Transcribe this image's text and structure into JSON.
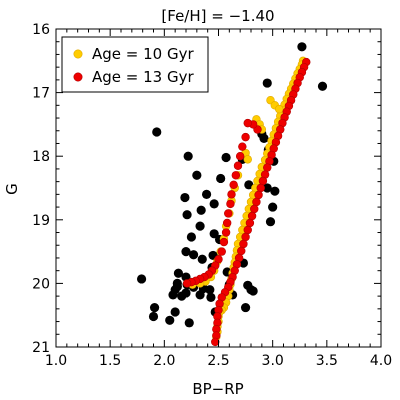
{
  "chart_data": {
    "type": "scatter",
    "title": "[Fe/H] = −1.40",
    "xlabel": "BP−RP",
    "ylabel": "G",
    "xlim": [
      1.0,
      4.0
    ],
    "ylim": [
      21,
      16
    ],
    "y_inverted": true,
    "grid": false,
    "legend_position": "top-left",
    "xticks": [
      {
        "value": 1.0,
        "label": "1.0"
      },
      {
        "value": 1.5,
        "label": "1.5"
      },
      {
        "value": 2.0,
        "label": "2.0"
      },
      {
        "value": 2.5,
        "label": "2.5"
      },
      {
        "value": 3.0,
        "label": "3.0"
      },
      {
        "value": 3.5,
        "label": "3.5"
      },
      {
        "value": 4.0,
        "label": "4.0"
      }
    ],
    "yticks": [
      {
        "value": 16,
        "label": "16"
      },
      {
        "value": 17,
        "label": "17"
      },
      {
        "value": 18,
        "label": "18"
      },
      {
        "value": 19,
        "label": "19"
      },
      {
        "value": 20,
        "label": "20"
      },
      {
        "value": 21,
        "label": "21"
      }
    ],
    "stars": {
      "color": "#000000",
      "points": [
        [
          3.27,
          16.28
        ],
        [
          2.34,
          16.75
        ],
        [
          3.46,
          16.9
        ],
        [
          2.95,
          16.85
        ],
        [
          1.93,
          17.62
        ],
        [
          2.9,
          17.65
        ],
        [
          2.92,
          17.72
        ],
        [
          2.96,
          17.9
        ],
        [
          2.22,
          18.0
        ],
        [
          2.57,
          18.02
        ],
        [
          2.72,
          18.05
        ],
        [
          3.01,
          18.08
        ],
        [
          2.3,
          18.3
        ],
        [
          2.52,
          18.35
        ],
        [
          2.78,
          18.45
        ],
        [
          2.95,
          18.5
        ],
        [
          3.02,
          18.55
        ],
        [
          2.39,
          18.6
        ],
        [
          2.19,
          18.65
        ],
        [
          2.46,
          18.75
        ],
        [
          3.0,
          18.8
        ],
        [
          2.34,
          18.85
        ],
        [
          2.21,
          18.92
        ],
        [
          2.98,
          19.03
        ],
        [
          2.33,
          19.1
        ],
        [
          2.46,
          19.22
        ],
        [
          2.25,
          19.27
        ],
        [
          2.51,
          19.31
        ],
        [
          2.2,
          19.5
        ],
        [
          2.27,
          19.55
        ],
        [
          2.45,
          19.56
        ],
        [
          2.35,
          19.62
        ],
        [
          2.44,
          19.75
        ],
        [
          2.73,
          19.68
        ],
        [
          2.13,
          19.84
        ],
        [
          2.58,
          19.82
        ],
        [
          1.79,
          19.93
        ],
        [
          2.2,
          19.9
        ],
        [
          2.37,
          19.94
        ],
        [
          2.12,
          20.0
        ],
        [
          2.21,
          20.02
        ],
        [
          2.6,
          20.02
        ],
        [
          2.77,
          20.03
        ],
        [
          2.12,
          20.05
        ],
        [
          2.27,
          20.06
        ],
        [
          2.36,
          20.08
        ],
        [
          2.1,
          20.1
        ],
        [
          2.42,
          20.1
        ],
        [
          2.2,
          20.15
        ],
        [
          2.33,
          20.18
        ],
        [
          2.63,
          20.18
        ],
        [
          2.8,
          20.1
        ],
        [
          2.08,
          20.18
        ],
        [
          2.16,
          20.2
        ],
        [
          2.43,
          20.22
        ],
        [
          1.91,
          20.38
        ],
        [
          2.1,
          20.45
        ],
        [
          2.47,
          20.45
        ],
        [
          2.75,
          20.38
        ],
        [
          2.82,
          20.12
        ],
        [
          1.9,
          20.52
        ],
        [
          2.05,
          20.58
        ],
        [
          2.23,
          20.62
        ]
      ]
    },
    "series": [
      {
        "name": "Age = 10 Gyr",
        "color": "#ffcc00",
        "points": [
          [
            3.28,
            16.5
          ],
          [
            3.27,
            16.56
          ],
          [
            3.25,
            16.63
          ],
          [
            3.23,
            16.7
          ],
          [
            3.21,
            16.78
          ],
          [
            3.19,
            16.86
          ],
          [
            3.17,
            16.94
          ],
          [
            3.15,
            17.02
          ],
          [
            3.13,
            17.1
          ],
          [
            3.11,
            17.19
          ],
          [
            3.09,
            17.28
          ],
          [
            3.07,
            17.37
          ],
          [
            3.05,
            17.46
          ],
          [
            3.03,
            17.56
          ],
          [
            3.01,
            17.66
          ],
          [
            2.99,
            17.76
          ],
          [
            2.97,
            17.86
          ],
          [
            2.95,
            17.96
          ],
          [
            2.93,
            18.06
          ],
          [
            2.9,
            18.17
          ],
          [
            2.88,
            18.28
          ],
          [
            2.86,
            18.39
          ],
          [
            2.84,
            18.5
          ],
          [
            2.82,
            18.61
          ],
          [
            2.8,
            18.72
          ],
          [
            2.78,
            18.83
          ],
          [
            2.76,
            18.94
          ],
          [
            2.74,
            19.05
          ],
          [
            2.72,
            19.16
          ],
          [
            2.7,
            19.27
          ],
          [
            2.68,
            19.38
          ],
          [
            2.67,
            19.48
          ],
          [
            2.66,
            19.58
          ],
          [
            2.65,
            19.67
          ],
          [
            2.64,
            19.75
          ],
          [
            2.63,
            19.84
          ],
          [
            2.62,
            19.93
          ],
          [
            2.61,
            20.02
          ],
          [
            2.6,
            20.1
          ],
          [
            2.59,
            20.2
          ],
          [
            2.57,
            20.3
          ],
          [
            2.55,
            20.38
          ],
          [
            2.53,
            20.42
          ],
          [
            2.51,
            20.45
          ],
          [
            2.5,
            20.52
          ],
          [
            2.5,
            20.6
          ],
          [
            2.49,
            20.68
          ],
          [
            2.49,
            20.76
          ],
          [
            2.48,
            20.84
          ],
          [
            2.98,
            17.12
          ],
          [
            3.02,
            17.2
          ],
          [
            3.06,
            17.26
          ],
          [
            2.85,
            17.42
          ],
          [
            2.88,
            17.5
          ],
          [
            2.9,
            17.58
          ],
          [
            2.75,
            17.95
          ],
          [
            2.77,
            18.05
          ],
          [
            2.68,
            18.3
          ],
          [
            2.65,
            18.5
          ],
          [
            2.62,
            18.7
          ],
          [
            2.6,
            18.9
          ],
          [
            2.57,
            19.1
          ],
          [
            2.55,
            19.3
          ],
          [
            2.52,
            19.5
          ],
          [
            2.49,
            19.65
          ],
          [
            2.46,
            19.8
          ],
          [
            2.43,
            19.9
          ],
          [
            2.38,
            19.97
          ],
          [
            2.33,
            20.0
          ],
          [
            2.26,
            20.02
          ]
        ]
      },
      {
        "name": "Age = 13 Gyr",
        "color": "#ee0000",
        "points": [
          [
            3.31,
            16.52
          ],
          [
            3.29,
            16.6
          ],
          [
            3.27,
            16.68
          ],
          [
            3.25,
            16.76
          ],
          [
            3.23,
            16.85
          ],
          [
            3.21,
            16.94
          ],
          [
            3.19,
            17.03
          ],
          [
            3.17,
            17.12
          ],
          [
            3.15,
            17.21
          ],
          [
            3.13,
            17.3
          ],
          [
            3.11,
            17.39
          ],
          [
            3.09,
            17.48
          ],
          [
            3.07,
            17.58
          ],
          [
            3.05,
            17.68
          ],
          [
            3.03,
            17.78
          ],
          [
            3.01,
            17.88
          ],
          [
            2.99,
            17.98
          ],
          [
            2.97,
            18.08
          ],
          [
            2.95,
            18.18
          ],
          [
            2.93,
            18.29
          ],
          [
            2.91,
            18.39
          ],
          [
            2.89,
            18.5
          ],
          [
            2.87,
            18.61
          ],
          [
            2.85,
            18.72
          ],
          [
            2.83,
            18.83
          ],
          [
            2.81,
            18.94
          ],
          [
            2.79,
            19.05
          ],
          [
            2.77,
            19.16
          ],
          [
            2.75,
            19.27
          ],
          [
            2.73,
            19.38
          ],
          [
            2.71,
            19.49
          ],
          [
            2.69,
            19.6
          ],
          [
            2.67,
            19.7
          ],
          [
            2.65,
            19.8
          ],
          [
            2.63,
            19.9
          ],
          [
            2.61,
            19.98
          ],
          [
            2.59,
            20.06
          ],
          [
            2.56,
            20.14
          ],
          [
            2.53,
            20.22
          ],
          [
            2.51,
            20.32
          ],
          [
            2.5,
            20.42
          ],
          [
            2.49,
            20.52
          ],
          [
            2.49,
            20.62
          ],
          [
            2.48,
            20.72
          ],
          [
            2.48,
            20.82
          ],
          [
            2.47,
            20.92
          ],
          [
            2.86,
            17.58
          ],
          [
            2.82,
            17.5
          ],
          [
            2.77,
            17.48
          ],
          [
            2.75,
            17.7
          ],
          [
            2.72,
            17.85
          ],
          [
            2.7,
            18.0
          ],
          [
            2.68,
            18.15
          ],
          [
            2.66,
            18.3
          ],
          [
            2.64,
            18.45
          ],
          [
            2.62,
            18.6
          ],
          [
            2.61,
            18.75
          ],
          [
            2.59,
            18.9
          ],
          [
            2.58,
            19.05
          ],
          [
            2.57,
            19.2
          ],
          [
            2.55,
            19.35
          ],
          [
            2.53,
            19.5
          ],
          [
            2.5,
            19.62
          ],
          [
            2.47,
            19.72
          ],
          [
            2.44,
            19.8
          ],
          [
            2.41,
            19.86
          ],
          [
            2.37,
            19.9
          ],
          [
            2.33,
            19.93
          ],
          [
            2.29,
            19.96
          ],
          [
            2.25,
            19.98
          ],
          [
            2.21,
            20.0
          ]
        ]
      }
    ]
  }
}
